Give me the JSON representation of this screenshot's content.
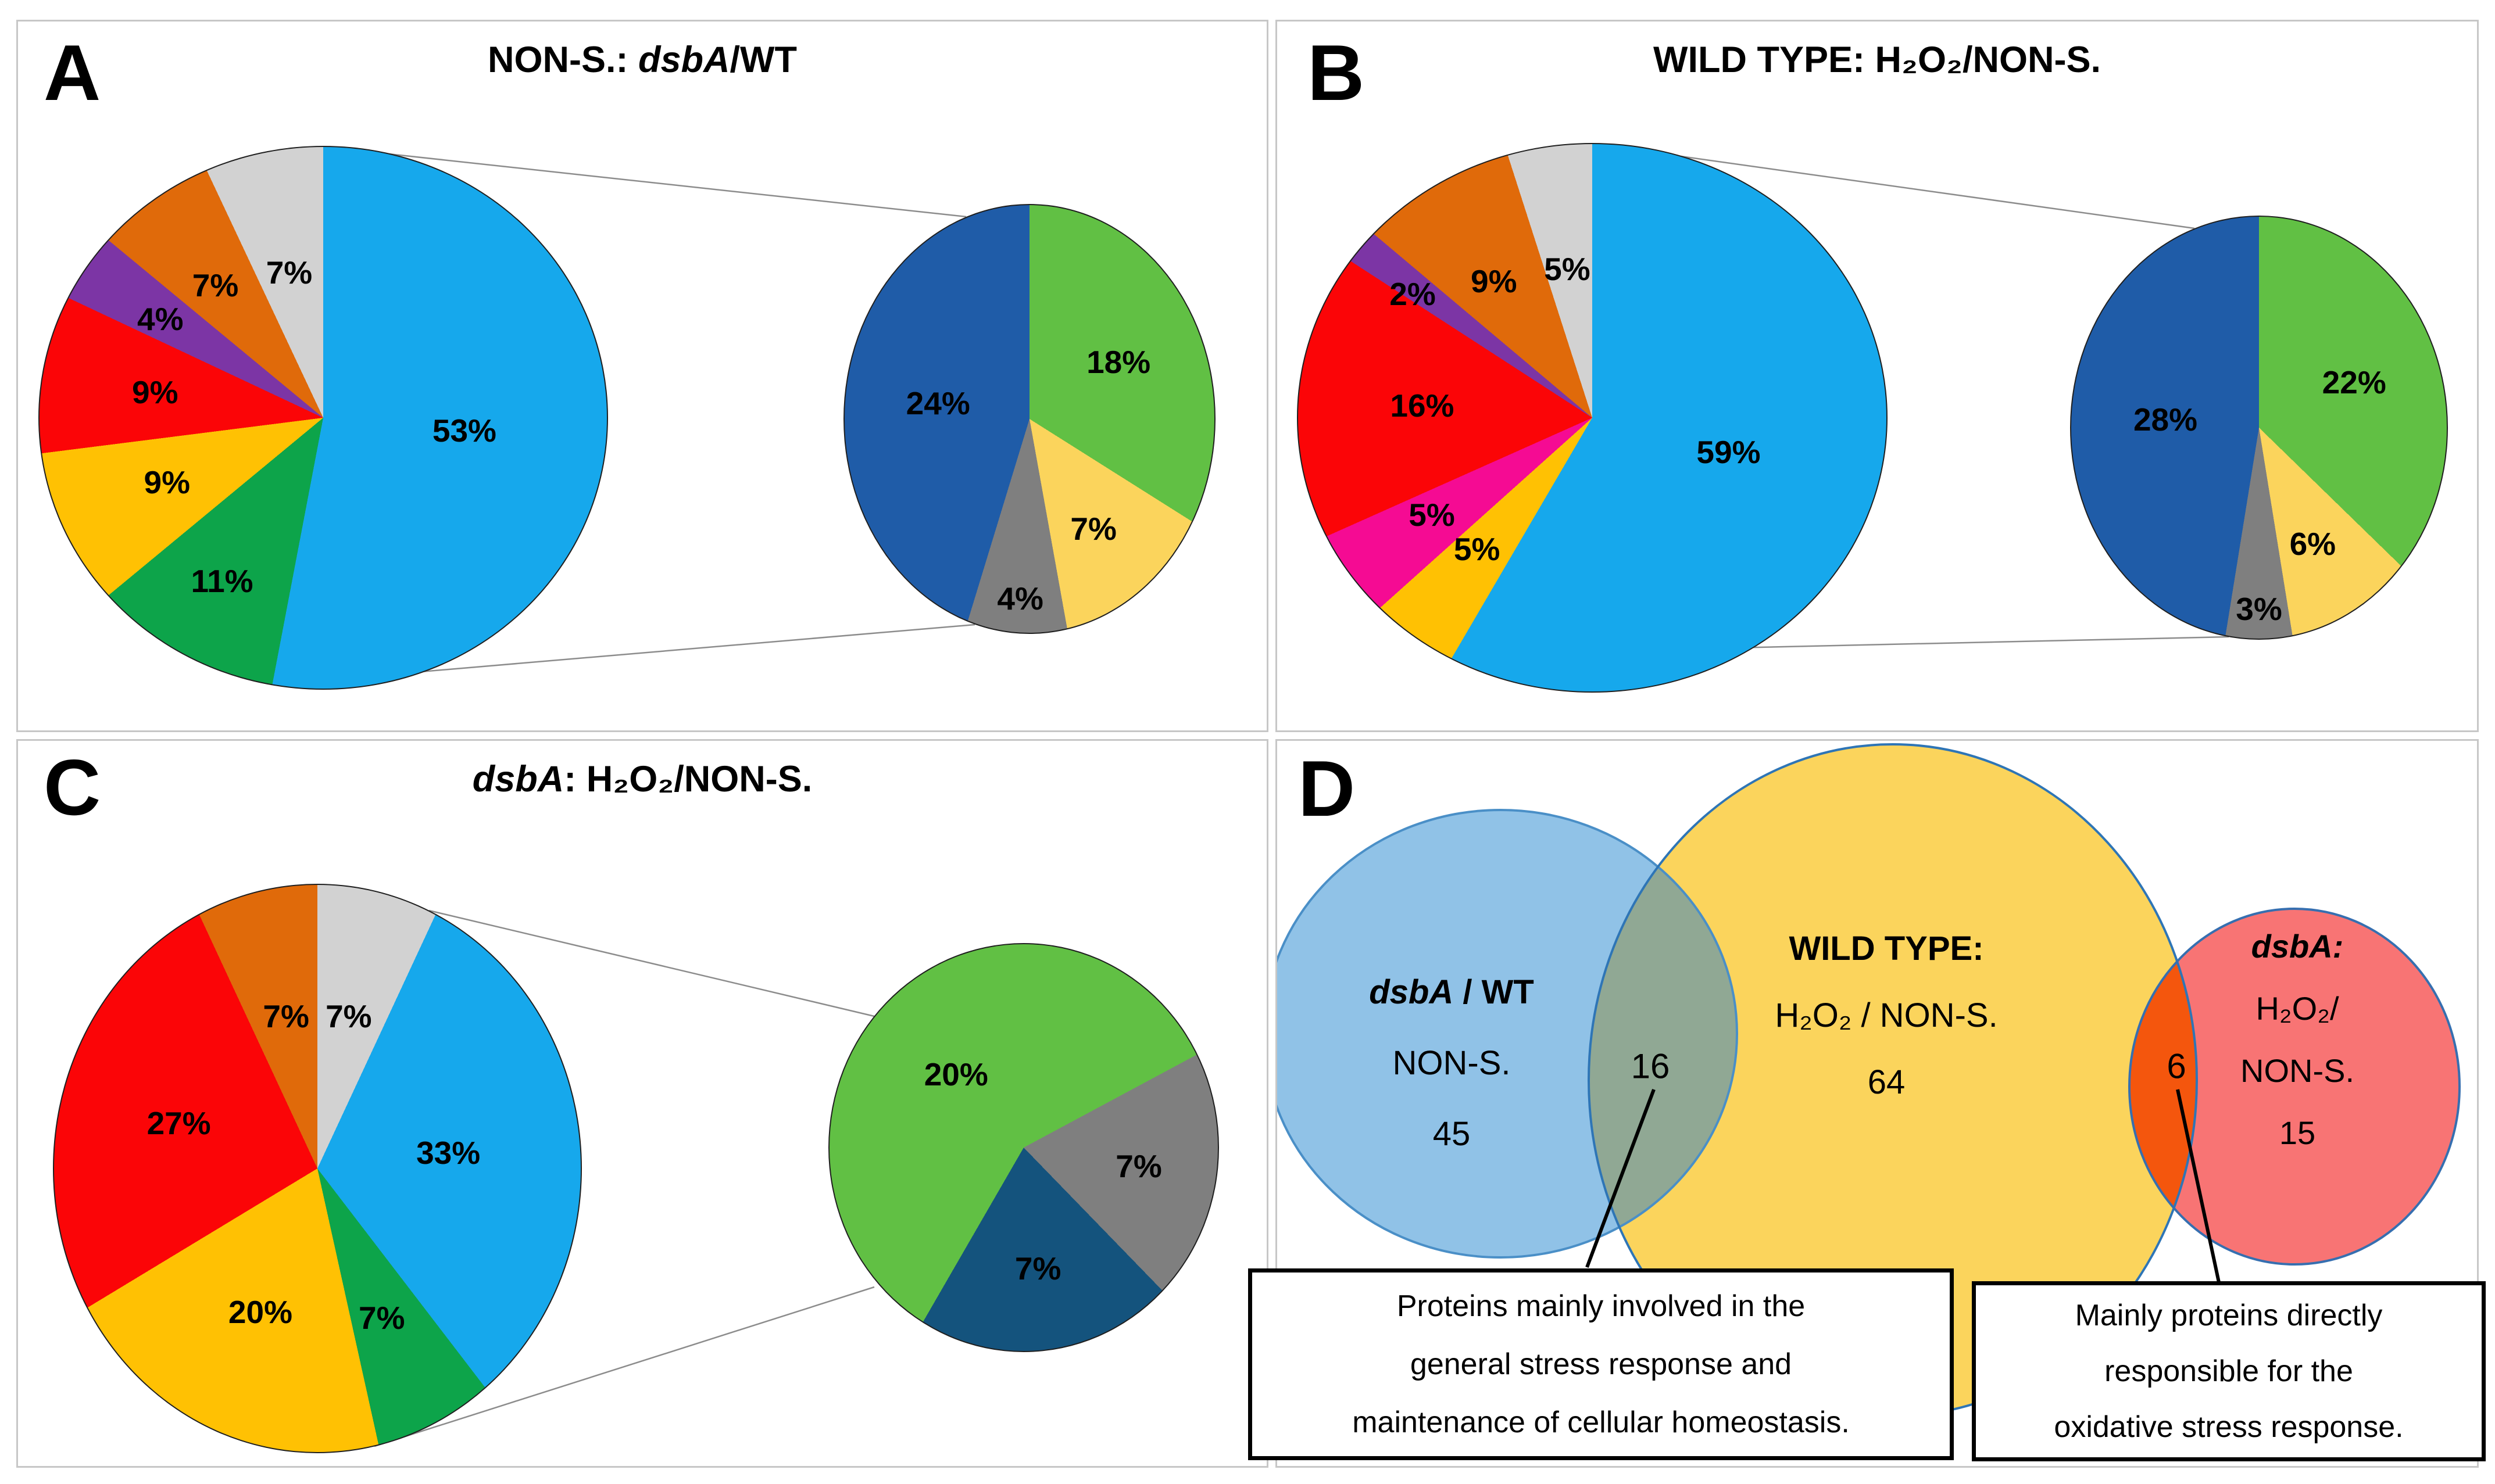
{
  "figure": {
    "panels": [
      {
        "id": "a",
        "letter": "A",
        "title_prefix": "NON-S.: ",
        "title_italic": "dsbA",
        "title_suffix": "/WT"
      },
      {
        "id": "b",
        "letter": "B",
        "title_prefix": "WILD TYPE: H₂O₂/NON-S.",
        "title_italic": "",
        "title_suffix": ""
      },
      {
        "id": "c",
        "letter": "C",
        "title_prefix": "",
        "title_italic": "dsbA",
        "title_suffix": ": H₂O₂/NON-S."
      },
      {
        "id": "d",
        "letter": "D"
      }
    ]
  },
  "chart_data": [
    {
      "id": "pie-a-main",
      "type": "pie",
      "role": "main",
      "title": "NON-S.: dsbA/WT",
      "start_deg": 0,
      "legend": "none",
      "slices": [
        {
          "label": "53%",
          "value": 53,
          "color": "#16A8EC",
          "label_r": 0.5
        },
        {
          "label": "11%",
          "value": 11,
          "color": "#0DA44A",
          "label_r": 0.7
        },
        {
          "label": "9%",
          "value": 9,
          "color": "#FFC103",
          "label_r": 0.6
        },
        {
          "label": "9%",
          "value": 9,
          "color": "#FB0507",
          "label_r": 0.6
        },
        {
          "label": "4%",
          "value": 4,
          "color": "#7C35A5",
          "label_r": 0.68
        },
        {
          "label": "7%",
          "value": 7,
          "color": "#E06A0A",
          "label_r": 0.62
        },
        {
          "label": "7%",
          "value": 7,
          "color": "#D2D2D2",
          "label_r": 0.55
        }
      ]
    },
    {
      "id": "pie-a-sec",
      "type": "pie",
      "role": "secondary-breakdown-of-53%",
      "start_deg": 0,
      "slices": [
        {
          "label": "18%",
          "value": 18,
          "color": "#61C044",
          "label_r": 0.55
        },
        {
          "label": "7%",
          "value": 7,
          "color": "#FBD45C",
          "label_r": 0.62
        },
        {
          "label": "4%",
          "value": 4,
          "color": "#7F7F7F",
          "label_r": 0.84
        },
        {
          "label": "24%",
          "value": 24,
          "color": "#1F5CA8",
          "label_r": 0.5
        }
      ]
    },
    {
      "id": "pie-b-main",
      "type": "pie",
      "role": "main",
      "title": "WILD TYPE: H₂O₂/NON-S.",
      "start_deg": 0,
      "legend": "none",
      "slices": [
        {
          "label": "59%",
          "value": 59,
          "color": "#16A8EC",
          "label_r": 0.48
        },
        {
          "label": "5%",
          "value": 5,
          "color": "#FFC103",
          "label_r": 0.62
        },
        {
          "label": "5%",
          "value": 5,
          "color": "#F50B93",
          "label_r": 0.65
        },
        {
          "label": "16%",
          "value": 16,
          "color": "#FB0507",
          "label_r": 0.58
        },
        {
          "label": "2%",
          "value": 2,
          "color": "#7C35A5",
          "label_r": 0.76
        },
        {
          "label": "9%",
          "value": 9,
          "color": "#E06A0A",
          "label_r": 0.6
        },
        {
          "label": "5%",
          "value": 5,
          "color": "#D2D2D2",
          "label_r": 0.55
        }
      ]
    },
    {
      "id": "pie-b-sec",
      "type": "pie",
      "role": "secondary-breakdown-of-59%",
      "start_deg": 0,
      "slices": [
        {
          "label": "22%",
          "value": 22,
          "color": "#61C044",
          "label_r": 0.55
        },
        {
          "label": "6%",
          "value": 6,
          "color": "#FBD45C",
          "label_r": 0.62
        },
        {
          "label": "3%",
          "value": 3,
          "color": "#7F7F7F",
          "label_r": 0.86
        },
        {
          "label": "28%",
          "value": 28,
          "color": "#1F5CA8",
          "label_r": 0.5
        }
      ]
    },
    {
      "id": "pie-c-main",
      "type": "pie",
      "role": "main",
      "title": "dsbA: H₂O₂/NON-S.",
      "start_deg": 0,
      "legend": "none",
      "slices": [
        {
          "label": "7%",
          "value": 7,
          "color": "#D2D2D2",
          "label_r": 0.55
        },
        {
          "label": "33%",
          "value": 33,
          "color": "#16A8EC",
          "label_r": 0.5
        },
        {
          "label": "7%",
          "value": 7,
          "color": "#0DA44A",
          "label_r": 0.58
        },
        {
          "label": "20%",
          "value": 20,
          "color": "#FFC103",
          "label_r": 0.55
        },
        {
          "label": "27%",
          "value": 27,
          "color": "#FB0507",
          "label_r": 0.55
        },
        {
          "label": "7%",
          "value": 7,
          "color": "#E06A0A",
          "label_r": 0.55
        }
      ]
    },
    {
      "id": "pie-c-sec",
      "type": "pie",
      "role": "secondary-breakdown-of-33%",
      "start_deg": 210,
      "slices": [
        {
          "label": "20%",
          "value": 20,
          "color": "#61C044",
          "label_r": 0.5
        },
        {
          "label": "7%",
          "value": 7,
          "color": "#7F7F7F",
          "label_r": 0.6
        },
        {
          "label": "7%",
          "value": 7,
          "color": "#14537D",
          "label_r": 0.6
        }
      ]
    },
    {
      "id": "venn-d",
      "type": "venn",
      "sets": [
        {
          "label_italic": "dsbA",
          "label_rest": " / WT",
          "sub": "NON-S.",
          "count": "45",
          "fill": "#90C2E7",
          "stroke": "#4A8FC7"
        },
        {
          "label": "WILD TYPE:",
          "sub": "H₂O₂ / NON-S.",
          "count": "64",
          "fill": "#FBD45C",
          "stroke": "#2E75B6"
        },
        {
          "label_italic": "dsbA:",
          "sub": "H₂O₂/",
          "sub2": "NON-S.",
          "count": "15",
          "fill": "#F87474",
          "stroke": "#366FB0"
        }
      ],
      "overlaps": [
        {
          "count": "16",
          "fill": "#90A894"
        },
        {
          "count": "6",
          "fill": "#F4560D"
        }
      ],
      "callouts": [
        {
          "line1": "Proteins mainly involved in the",
          "line2": "general stress response and",
          "line3": "maintenance of cellular homeostasis."
        },
        {
          "line1": "Mainly proteins directly",
          "line2": "responsible for the",
          "line3": "oxidative stress response."
        }
      ]
    }
  ]
}
